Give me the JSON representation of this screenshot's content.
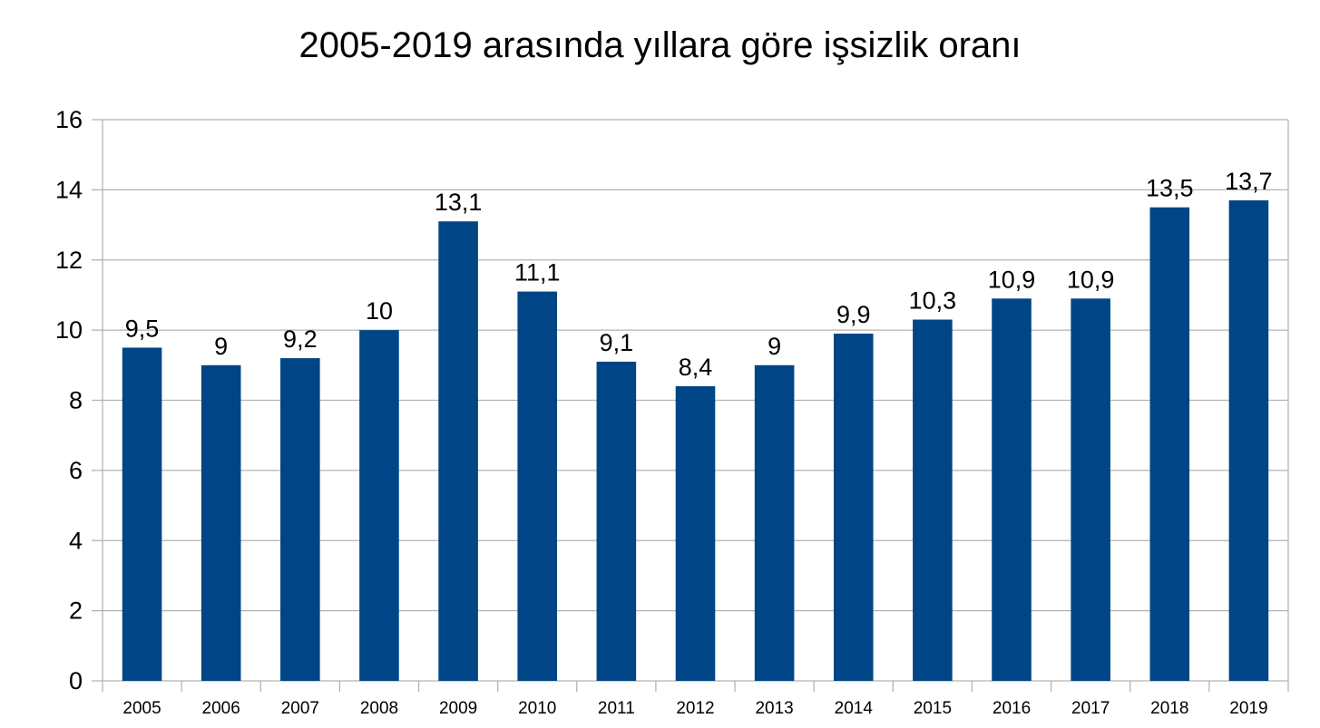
{
  "chart_data": {
    "type": "bar",
    "title": "2005-2019 arasında yıllara göre işsizlik oranı",
    "categories": [
      "2005",
      "2006",
      "2007",
      "2008",
      "2009",
      "2010",
      "2011",
      "2012",
      "2013",
      "2014",
      "2015",
      "2016",
      "2017",
      "2018",
      "2019"
    ],
    "values": [
      9.5,
      9,
      9.2,
      10,
      13.1,
      11.1,
      9.1,
      8.4,
      9,
      9.9,
      10.3,
      10.9,
      10.9,
      13.5,
      13.7
    ],
    "data_labels": [
      "9,5",
      "9",
      "9,2",
      "10",
      "13,1",
      "11,1",
      "9,1",
      "8,4",
      "9",
      "9,9",
      "10,3",
      "10,9",
      "10,9",
      "13,5",
      "13,7"
    ],
    "xlabel": "",
    "ylabel": "",
    "ylim": [
      0,
      16
    ],
    "yticks": [
      0,
      2,
      4,
      6,
      8,
      10,
      12,
      14,
      16
    ],
    "grid": true,
    "legend": "none",
    "bar_color": "#004586"
  }
}
